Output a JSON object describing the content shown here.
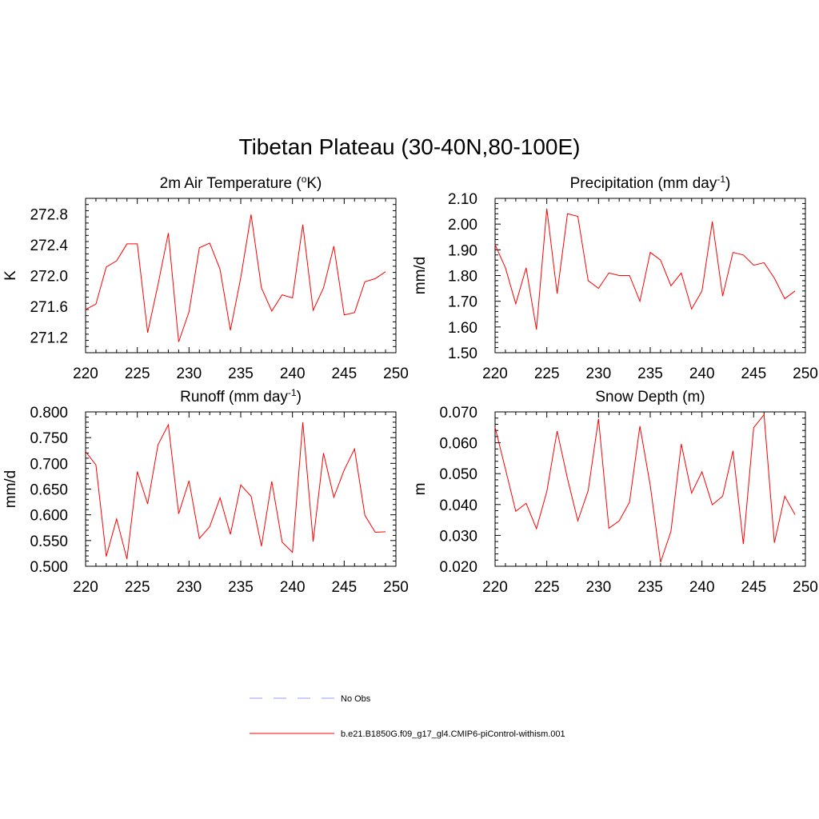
{
  "title": "Tibetan Plateau (30-40N,80-100E)",
  "legend": {
    "entries": [
      {
        "label": "No Obs",
        "color": "#9999ff",
        "style": "dashed"
      },
      {
        "label": "b.e21.B1850G.f09_g17_gl4.CMIP6-piControl-withism.001",
        "color": "#ff0000",
        "style": "solid"
      }
    ]
  },
  "chart_data": [
    {
      "type": "line",
      "title": "2m Air Temperature (ºK)",
      "ylabel": "K",
      "xlabel": "",
      "xlim": [
        220,
        250
      ],
      "ylim": [
        271.0,
        273.0
      ],
      "xticks": [
        220,
        225,
        230,
        235,
        240,
        245,
        250
      ],
      "yticks": [
        "271.2",
        "271.6",
        "272.0",
        "272.4",
        "272.8"
      ],
      "grid": false,
      "series": [
        {
          "color": "#ff0000",
          "x": [
            220,
            221,
            222,
            223,
            224,
            225,
            226,
            227,
            228,
            229,
            230,
            231,
            232,
            233,
            234,
            235,
            236,
            237,
            238,
            239,
            240,
            241,
            242,
            243,
            244,
            245,
            246,
            247,
            248,
            249
          ],
          "y": [
            271.56,
            271.63,
            272.11,
            272.19,
            272.41,
            272.41,
            271.26,
            271.88,
            272.55,
            271.14,
            271.53,
            272.36,
            272.42,
            272.08,
            271.29,
            271.97,
            272.79,
            271.84,
            271.54,
            271.75,
            271.71,
            272.66,
            271.55,
            271.84,
            272.38,
            271.49,
            271.52,
            271.92,
            271.96,
            272.05
          ]
        }
      ]
    },
    {
      "type": "line",
      "title": "Precipitation (mm day-1)",
      "ylabel": "mm/d",
      "xlabel": "",
      "xlim": [
        220,
        250
      ],
      "ylim": [
        1.5,
        2.1
      ],
      "xticks": [
        220,
        225,
        230,
        235,
        240,
        245,
        250
      ],
      "yticks": [
        "1.50",
        "1.60",
        "1.70",
        "1.80",
        "1.90",
        "2.00",
        "2.10"
      ],
      "grid": false,
      "series": [
        {
          "color": "#ff0000",
          "x": [
            220,
            221,
            222,
            223,
            224,
            225,
            226,
            227,
            228,
            229,
            230,
            231,
            232,
            233,
            234,
            235,
            236,
            237,
            238,
            239,
            240,
            241,
            242,
            243,
            244,
            245,
            246,
            247,
            248,
            249
          ],
          "y": [
            1.92,
            1.83,
            1.69,
            1.83,
            1.59,
            2.06,
            1.73,
            2.04,
            2.03,
            1.78,
            1.75,
            1.81,
            1.8,
            1.8,
            1.7,
            1.89,
            1.86,
            1.76,
            1.81,
            1.67,
            1.74,
            2.01,
            1.72,
            1.89,
            1.88,
            1.84,
            1.85,
            1.79,
            1.71,
            1.74
          ]
        }
      ]
    },
    {
      "type": "line",
      "title": "Runoff (mm day-1)",
      "ylabel": "mm/d",
      "xlabel": "",
      "xlim": [
        220,
        250
      ],
      "ylim": [
        0.5,
        0.8
      ],
      "xticks": [
        220,
        225,
        230,
        235,
        240,
        245,
        250
      ],
      "yticks": [
        "0.500",
        "0.550",
        "0.600",
        "0.650",
        "0.700",
        "0.750",
        "0.800"
      ],
      "grid": false,
      "series": [
        {
          "color": "#ff0000",
          "x": [
            220,
            221,
            222,
            223,
            224,
            225,
            226,
            227,
            228,
            229,
            230,
            231,
            232,
            233,
            234,
            235,
            236,
            237,
            238,
            239,
            240,
            241,
            242,
            243,
            244,
            245,
            246,
            247,
            248,
            249
          ],
          "y": [
            0.723,
            0.697,
            0.519,
            0.592,
            0.514,
            0.684,
            0.621,
            0.736,
            0.775,
            0.602,
            0.666,
            0.554,
            0.577,
            0.633,
            0.562,
            0.658,
            0.636,
            0.539,
            0.665,
            0.547,
            0.527,
            0.78,
            0.548,
            0.72,
            0.634,
            0.687,
            0.728,
            0.599,
            0.566,
            0.567
          ]
        }
      ]
    },
    {
      "type": "line",
      "title": "Snow Depth (m)",
      "ylabel": "m",
      "xlabel": "",
      "xlim": [
        220,
        250
      ],
      "ylim": [
        0.02,
        0.07
      ],
      "xticks": [
        220,
        225,
        230,
        235,
        240,
        245,
        250
      ],
      "yticks": [
        "0.020",
        "0.030",
        "0.040",
        "0.050",
        "0.060",
        "0.070"
      ],
      "grid": false,
      "series": [
        {
          "color": "#ff0000",
          "x": [
            220,
            221,
            222,
            223,
            224,
            225,
            226,
            227,
            228,
            229,
            230,
            231,
            232,
            233,
            234,
            235,
            236,
            237,
            238,
            239,
            240,
            241,
            242,
            243,
            244,
            245,
            246,
            247,
            248,
            249
          ],
          "y": [
            0.065,
            0.0515,
            0.0378,
            0.0404,
            0.0322,
            0.0442,
            0.0638,
            0.0484,
            0.0347,
            0.0445,
            0.0678,
            0.0323,
            0.0347,
            0.0408,
            0.0654,
            0.0462,
            0.0213,
            0.0313,
            0.0596,
            0.0437,
            0.0506,
            0.0399,
            0.0427,
            0.0574,
            0.0272,
            0.0649,
            0.0691,
            0.0276,
            0.0427,
            0.0367
          ]
        }
      ]
    }
  ]
}
